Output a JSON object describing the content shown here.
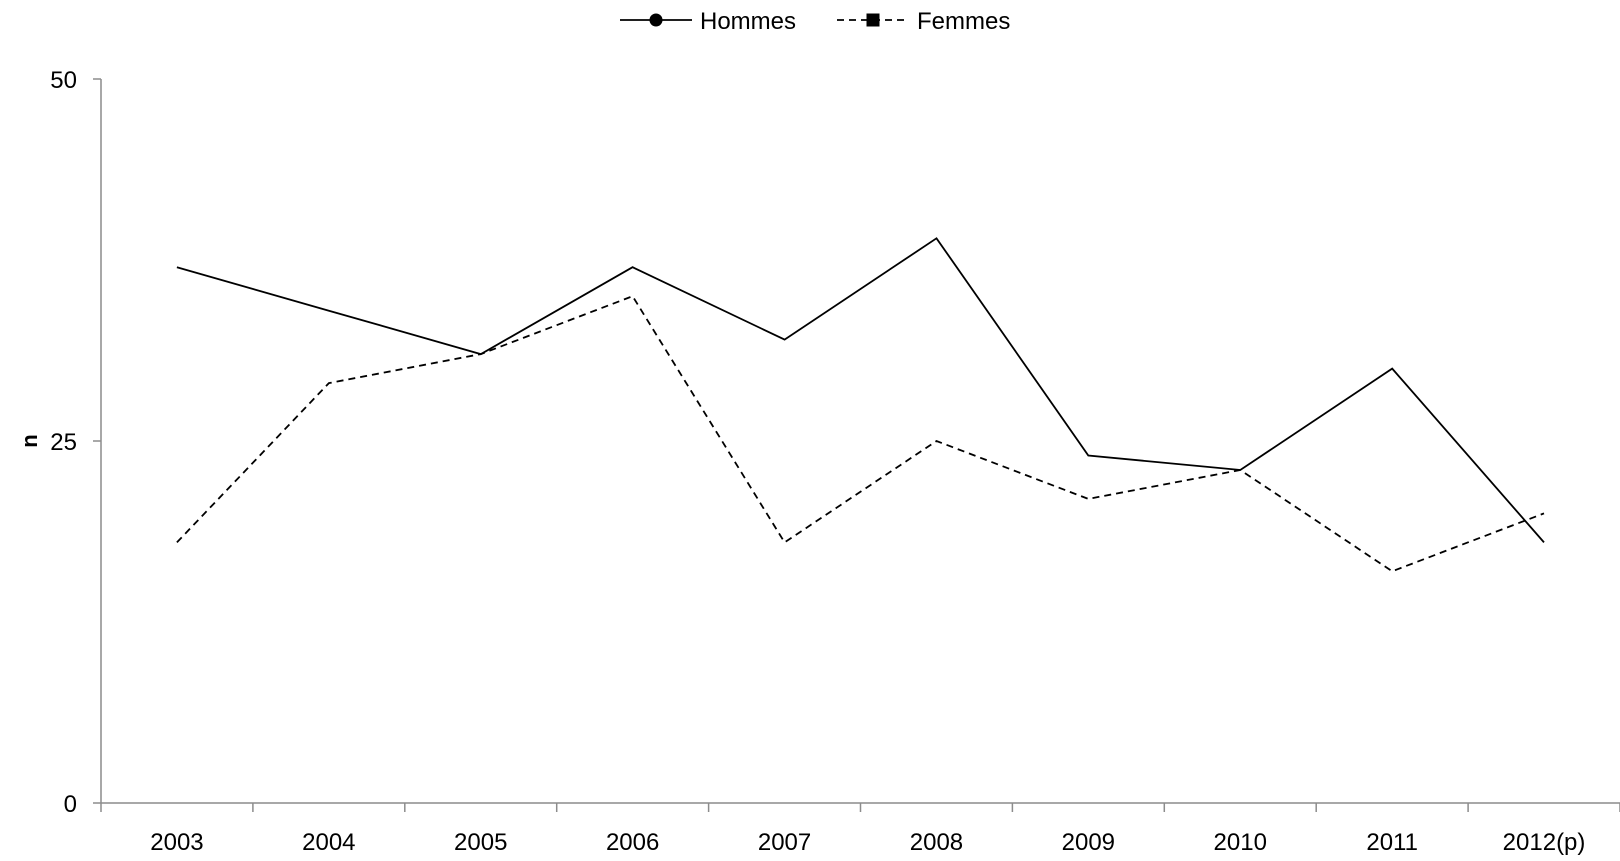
{
  "chart_data": {
    "type": "line",
    "categories": [
      "2003",
      "2004",
      "2005",
      "2006",
      "2007",
      "2008",
      "2009",
      "2010",
      "2011",
      "2012(p)"
    ],
    "series": [
      {
        "name": "Hommes",
        "values": [
          37,
          34,
          31,
          37,
          32,
          39,
          24,
          23,
          30,
          18
        ],
        "line_style": "solid",
        "marker": "circle"
      },
      {
        "name": "Femmes",
        "values": [
          18,
          29,
          31,
          35,
          18,
          25,
          21,
          23,
          16,
          20
        ],
        "line_style": "dashed",
        "marker": "square"
      }
    ],
    "ylabel": "n",
    "xlabel": "",
    "ylim": [
      0,
      50
    ],
    "yticks": [
      0,
      25,
      50
    ],
    "grid": false,
    "legend_position": "top-center",
    "colors": {
      "line": "#000000",
      "axis": "#8c8c8c"
    }
  }
}
